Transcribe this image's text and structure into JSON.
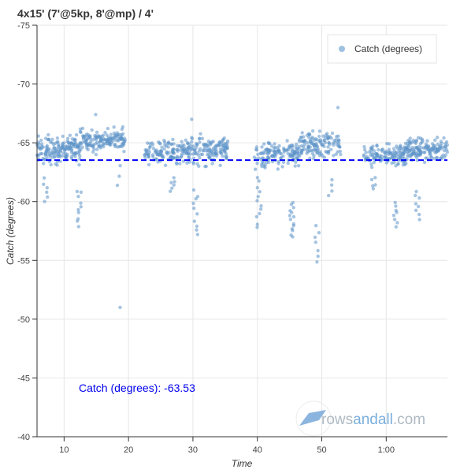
{
  "chart_data": {
    "type": "scatter",
    "title": "4x15' (7'@5kp, 8'@mp) / 4'",
    "xlabel": "Time",
    "ylabel": "Catch (degrees)",
    "x_unit": "minutes",
    "xlim": [
      5.8,
      69.5
    ],
    "ylim": [
      -75,
      -40
    ],
    "y_axis_reversed": true,
    "x_ticks": [
      10,
      20,
      30,
      40,
      50,
      60
    ],
    "x_tick_labels": [
      "10",
      "20",
      "30",
      "40",
      "50",
      "1:00"
    ],
    "y_ticks": [
      -75,
      -70,
      -65,
      -60,
      -55,
      -50,
      -45,
      -40
    ],
    "y_tick_labels": [
      "-75",
      "-70",
      "-65",
      "-60",
      "-55",
      "-50",
      "-45",
      "-40"
    ],
    "grid": true,
    "legend": {
      "position": "top-right",
      "entries": [
        {
          "label": "Catch (degrees)",
          "color": "#6a9fd0"
        }
      ]
    },
    "series_color": "#5d94c8",
    "mean_line": {
      "value": -63.53,
      "color": "#0000ff",
      "style": "dashed"
    },
    "annotation": "Catch (degrees): -63.53",
    "segments": [
      {
        "start": 5.8,
        "end": 12.5,
        "center": -64.4,
        "spread": 1.1,
        "count": 170
      },
      {
        "start": 12.5,
        "end": 19.5,
        "center": -65.2,
        "spread": 0.9,
        "count": 150
      },
      {
        "start": 22.5,
        "end": 29.5,
        "center": -64.2,
        "spread": 1.0,
        "count": 140
      },
      {
        "start": 29.5,
        "end": 35.5,
        "center": -64.5,
        "spread": 1.2,
        "count": 130
      },
      {
        "start": 39.5,
        "end": 46.5,
        "center": -64.0,
        "spread": 1.0,
        "count": 140
      },
      {
        "start": 46.5,
        "end": 53.0,
        "center": -64.8,
        "spread": 1.0,
        "count": 130
      },
      {
        "start": 56.5,
        "end": 63.0,
        "center": -63.9,
        "spread": 1.0,
        "count": 130
      },
      {
        "start": 63.0,
        "end": 69.5,
        "center": -64.4,
        "spread": 1.0,
        "count": 150
      }
    ],
    "dips": [
      {
        "x": 7.1,
        "from": -62.0,
        "to": -60.0,
        "count": 6
      },
      {
        "x": 12.3,
        "from": -61.0,
        "to": -58.0,
        "count": 10
      },
      {
        "x": 18.4,
        "from": -63.0,
        "to": -61.5,
        "count": 3
      },
      {
        "x": 26.8,
        "from": -62.0,
        "to": -61.0,
        "count": 6
      },
      {
        "x": 30.4,
        "from": -61.0,
        "to": -57.2,
        "count": 10
      },
      {
        "x": 40.2,
        "from": -62.0,
        "to": -57.8,
        "count": 12
      },
      {
        "x": 45.3,
        "from": -60.0,
        "to": -57.0,
        "count": 14
      },
      {
        "x": 49.2,
        "from": -58.0,
        "to": -54.8,
        "count": 7
      },
      {
        "x": 51.2,
        "from": -62.0,
        "to": -60.5,
        "count": 4
      },
      {
        "x": 58.0,
        "from": -62.0,
        "to": -61.0,
        "count": 5
      },
      {
        "x": 61.5,
        "from": -60.0,
        "to": -57.8,
        "count": 8
      },
      {
        "x": 64.8,
        "from": -61.0,
        "to": -58.4,
        "count": 8
      }
    ],
    "outliers": [
      {
        "x": 18.7,
        "y": -51.0
      },
      {
        "x": 52.5,
        "y": -68.0
      },
      {
        "x": 14.9,
        "y": -67.4
      },
      {
        "x": 29.8,
        "y": -67.0
      },
      {
        "x": 48.6,
        "y": -66.0
      }
    ]
  },
  "watermark": {
    "text_a": "rows",
    "text_b": "andall",
    "text_c": ".com"
  }
}
